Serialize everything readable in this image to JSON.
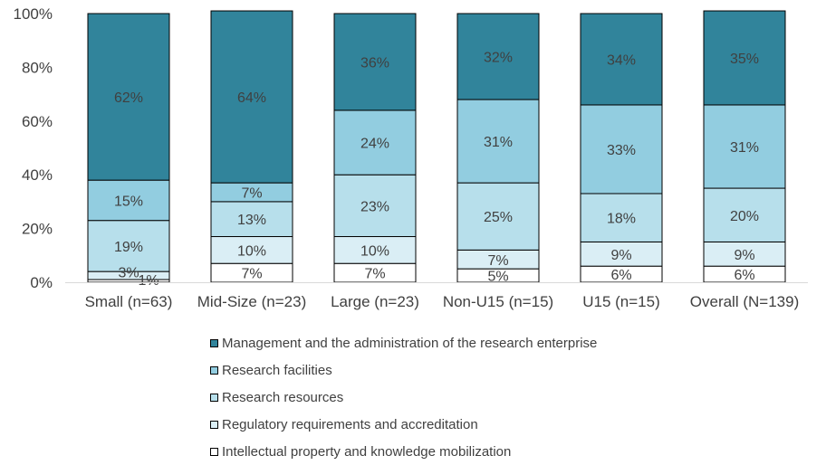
{
  "chart_data": {
    "type": "bar",
    "stacked": true,
    "percent": true,
    "ylim": [
      0,
      100
    ],
    "yticks": [
      "0%",
      "20%",
      "40%",
      "60%",
      "80%",
      "100%"
    ],
    "categories": [
      "Small (n=63)",
      "Mid-Size (n=23)",
      "Large (n=23)",
      "Non-U15 (n=15)",
      "U15 (n=15)",
      "Overall (N=139)"
    ],
    "series": [
      {
        "name": "Intellectual property and knowledge mobilization",
        "color": "#ffffff",
        "values": [
          1,
          7,
          7,
          5,
          6,
          6
        ],
        "labels": [
          "1%",
          "7%",
          "7%",
          "5%",
          "6%",
          "6%"
        ]
      },
      {
        "name": "Regulatory requirements and accreditation",
        "color": "#daeef5",
        "values": [
          3,
          10,
          10,
          7,
          9,
          9
        ],
        "labels": [
          "3%",
          "10%",
          "10%",
          "7%",
          "9%",
          "9%"
        ]
      },
      {
        "name": "Research resources",
        "color": "#b7dfeb",
        "values": [
          19,
          13,
          23,
          25,
          18,
          20
        ],
        "labels": [
          "19%",
          "13%",
          "23%",
          "25%",
          "18%",
          "20%"
        ]
      },
      {
        "name": "Research facilities",
        "color": "#92cde0",
        "values": [
          15,
          7,
          24,
          31,
          33,
          31
        ],
        "labels": [
          "15%",
          "7%",
          "24%",
          "31%",
          "33%",
          "31%"
        ]
      },
      {
        "name": "Management and the administration of the research enterprise",
        "color": "#31849b",
        "values": [
          62,
          64,
          36,
          32,
          34,
          35
        ],
        "labels": [
          "62%",
          "64%",
          "36%",
          "32%",
          "34%",
          "35%"
        ]
      }
    ],
    "legend": {
      "position": "bottom",
      "order": [
        "Management and the administration of the research enterprise",
        "Research facilities",
        "Research resources",
        "Regulatory requirements and accreditation",
        "Intellectual property and knowledge mobilization"
      ]
    }
  }
}
